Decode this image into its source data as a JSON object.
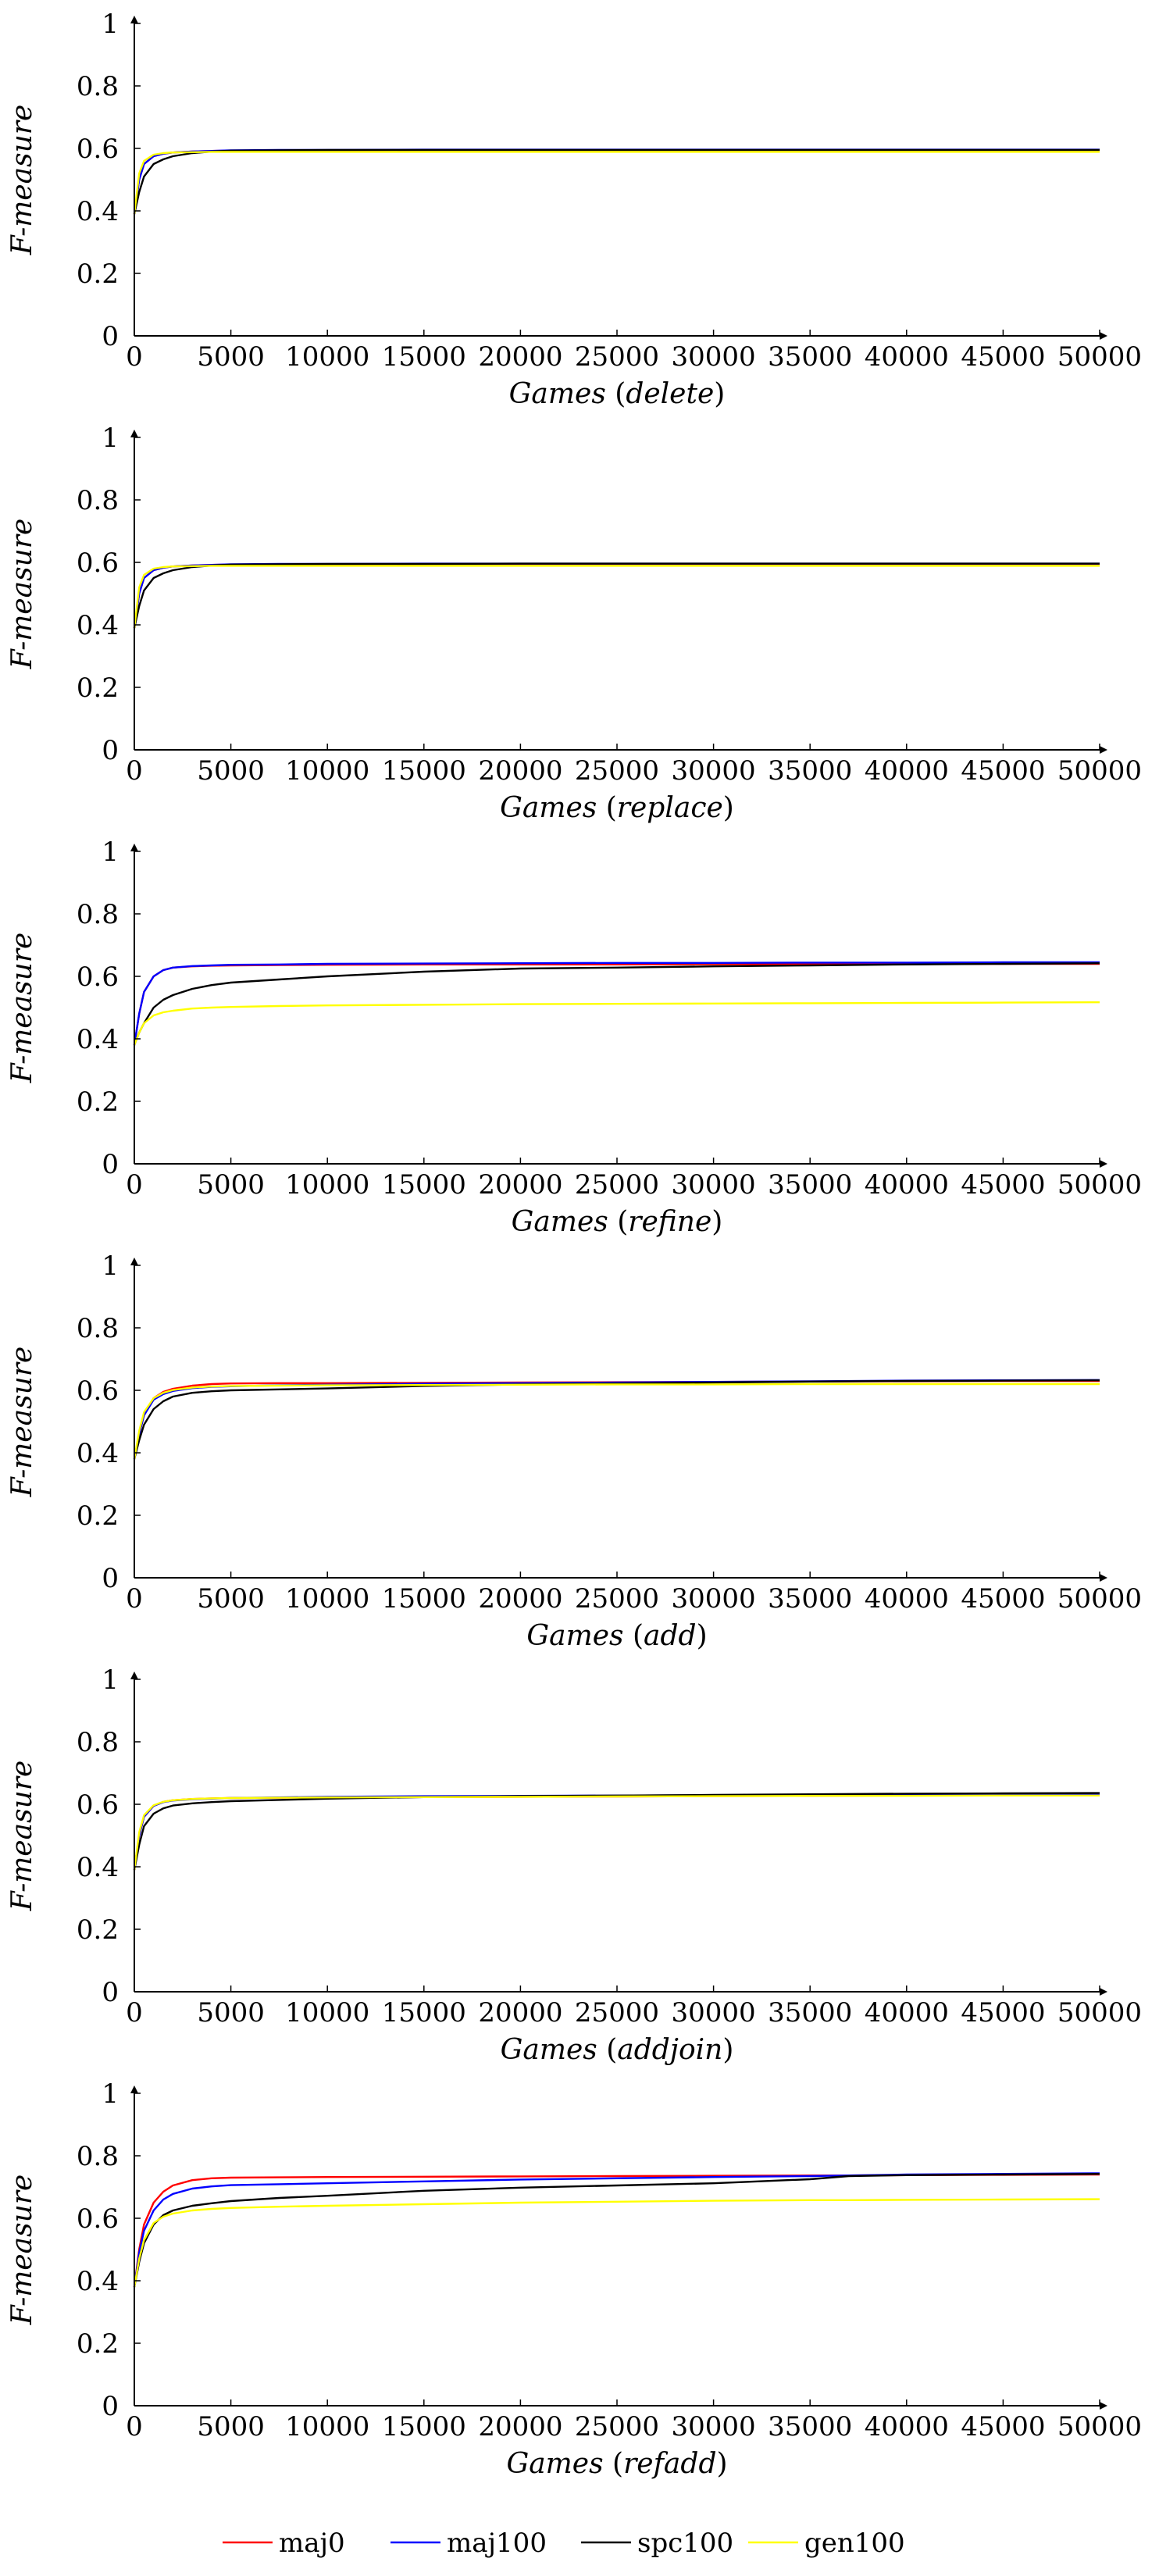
{
  "chart_data": [
    {
      "type": "line",
      "xlabel": "Games",
      "condition": "delete",
      "ylabel": "F-measure",
      "xlim": [
        0,
        50000
      ],
      "ylim": [
        0,
        1
      ],
      "xticks": [
        0,
        5000,
        10000,
        15000,
        20000,
        25000,
        30000,
        35000,
        40000,
        45000,
        50000
      ],
      "yticks": [
        0,
        0.2,
        0.4,
        0.6,
        0.8,
        1
      ],
      "grid": false,
      "x": [
        0,
        250,
        500,
        1000,
        1500,
        2000,
        3000,
        4000,
        5000,
        7500,
        10000,
        15000,
        20000,
        25000,
        30000,
        35000,
        40000,
        45000,
        50000
      ],
      "series": [
        {
          "name": "maj0",
          "color": "#ff0000",
          "values": [
            0.39,
            0.5,
            0.55,
            0.575,
            0.583,
            0.587,
            0.59,
            0.592,
            0.593,
            0.594,
            0.594,
            0.595,
            0.595,
            0.595,
            0.595,
            0.595,
            0.595,
            0.595,
            0.595
          ]
        },
        {
          "name": "maj100",
          "color": "#0000ff",
          "values": [
            0.39,
            0.5,
            0.55,
            0.575,
            0.583,
            0.587,
            0.59,
            0.592,
            0.594,
            0.595,
            0.595,
            0.596,
            0.596,
            0.596,
            0.596,
            0.596,
            0.596,
            0.596,
            0.596
          ]
        },
        {
          "name": "spc100",
          "color": "#000000",
          "values": [
            0.39,
            0.46,
            0.51,
            0.55,
            0.565,
            0.575,
            0.585,
            0.59,
            0.593,
            0.594,
            0.595,
            0.595,
            0.595,
            0.595,
            0.595,
            0.595,
            0.595,
            0.595,
            0.595
          ]
        },
        {
          "name": "gen100",
          "color": "#ffff00",
          "values": [
            0.39,
            0.52,
            0.56,
            0.58,
            0.585,
            0.587,
            0.588,
            0.589,
            0.589,
            0.589,
            0.589,
            0.589,
            0.589,
            0.589,
            0.589,
            0.589,
            0.589,
            0.589,
            0.589
          ]
        }
      ]
    },
    {
      "type": "line",
      "xlabel": "Games",
      "condition": "replace",
      "ylabel": "F-measure",
      "xlim": [
        0,
        50000
      ],
      "ylim": [
        0,
        1
      ],
      "xticks": [
        0,
        5000,
        10000,
        15000,
        20000,
        25000,
        30000,
        35000,
        40000,
        45000,
        50000
      ],
      "yticks": [
        0,
        0.2,
        0.4,
        0.6,
        0.8,
        1
      ],
      "grid": false,
      "x": [
        0,
        250,
        500,
        1000,
        1500,
        2000,
        3000,
        4000,
        5000,
        7500,
        10000,
        15000,
        20000,
        25000,
        30000,
        35000,
        40000,
        45000,
        50000
      ],
      "series": [
        {
          "name": "maj0",
          "color": "#ff0000",
          "values": [
            0.39,
            0.5,
            0.55,
            0.575,
            0.583,
            0.587,
            0.59,
            0.592,
            0.593,
            0.594,
            0.594,
            0.595,
            0.595,
            0.595,
            0.595,
            0.595,
            0.595,
            0.595,
            0.595
          ]
        },
        {
          "name": "maj100",
          "color": "#0000ff",
          "values": [
            0.39,
            0.5,
            0.55,
            0.575,
            0.583,
            0.587,
            0.59,
            0.592,
            0.594,
            0.595,
            0.595,
            0.596,
            0.596,
            0.596,
            0.596,
            0.596,
            0.596,
            0.596,
            0.596
          ]
        },
        {
          "name": "spc100",
          "color": "#000000",
          "values": [
            0.39,
            0.46,
            0.51,
            0.55,
            0.565,
            0.575,
            0.585,
            0.59,
            0.593,
            0.594,
            0.595,
            0.595,
            0.596,
            0.596,
            0.596,
            0.596,
            0.596,
            0.596,
            0.596
          ]
        },
        {
          "name": "gen100",
          "color": "#ffff00",
          "values": [
            0.39,
            0.52,
            0.56,
            0.58,
            0.585,
            0.587,
            0.588,
            0.589,
            0.589,
            0.589,
            0.589,
            0.589,
            0.589,
            0.589,
            0.589,
            0.589,
            0.589,
            0.589,
            0.589
          ]
        }
      ]
    },
    {
      "type": "line",
      "xlabel": "Games",
      "condition": "refine",
      "ylabel": "F-measure",
      "xlim": [
        0,
        50000
      ],
      "ylim": [
        0,
        1
      ],
      "xticks": [
        0,
        5000,
        10000,
        15000,
        20000,
        25000,
        30000,
        35000,
        40000,
        45000,
        50000
      ],
      "yticks": [
        0,
        0.2,
        0.4,
        0.6,
        0.8,
        1
      ],
      "grid": false,
      "x": [
        0,
        250,
        500,
        1000,
        1500,
        2000,
        3000,
        4000,
        5000,
        7500,
        10000,
        15000,
        20000,
        25000,
        30000,
        35000,
        40000,
        45000,
        50000
      ],
      "series": [
        {
          "name": "maj0",
          "color": "#ff0000",
          "values": [
            0.38,
            0.48,
            0.55,
            0.6,
            0.62,
            0.628,
            0.632,
            0.634,
            0.635,
            0.636,
            0.637,
            0.638,
            0.638,
            0.638,
            0.639,
            0.639,
            0.639,
            0.64,
            0.64
          ]
        },
        {
          "name": "maj100",
          "color": "#0000ff",
          "values": [
            0.38,
            0.48,
            0.55,
            0.6,
            0.62,
            0.628,
            0.633,
            0.635,
            0.637,
            0.638,
            0.64,
            0.641,
            0.642,
            0.643,
            0.643,
            0.644,
            0.644,
            0.645,
            0.645
          ]
        },
        {
          "name": "spc100",
          "color": "#000000",
          "values": [
            0.38,
            0.42,
            0.45,
            0.5,
            0.525,
            0.54,
            0.56,
            0.572,
            0.58,
            0.59,
            0.6,
            0.615,
            0.625,
            0.628,
            0.632,
            0.635,
            0.638,
            0.64,
            0.642
          ]
        },
        {
          "name": "gen100",
          "color": "#ffff00",
          "values": [
            0.38,
            0.42,
            0.45,
            0.475,
            0.485,
            0.49,
            0.497,
            0.5,
            0.502,
            0.505,
            0.507,
            0.509,
            0.511,
            0.512,
            0.513,
            0.514,
            0.515,
            0.516,
            0.517
          ]
        }
      ]
    },
    {
      "type": "line",
      "xlabel": "Games",
      "condition": "add",
      "ylabel": "F-measure",
      "xlim": [
        0,
        50000
      ],
      "ylim": [
        0,
        1
      ],
      "xticks": [
        0,
        5000,
        10000,
        15000,
        20000,
        25000,
        30000,
        35000,
        40000,
        45000,
        50000
      ],
      "yticks": [
        0,
        0.2,
        0.4,
        0.6,
        0.8,
        1
      ],
      "grid": false,
      "x": [
        0,
        250,
        500,
        1000,
        1500,
        2000,
        3000,
        4000,
        5000,
        7500,
        10000,
        15000,
        20000,
        25000,
        30000,
        35000,
        40000,
        45000,
        50000
      ],
      "series": [
        {
          "name": "maj0",
          "color": "#ff0000",
          "values": [
            0.38,
            0.46,
            0.52,
            0.575,
            0.595,
            0.605,
            0.615,
            0.62,
            0.622,
            0.623,
            0.623,
            0.624,
            0.625,
            0.626,
            0.627,
            0.628,
            0.629,
            0.63,
            0.63
          ]
        },
        {
          "name": "maj100",
          "color": "#0000ff",
          "values": [
            0.38,
            0.46,
            0.52,
            0.57,
            0.588,
            0.598,
            0.607,
            0.611,
            0.613,
            0.616,
            0.618,
            0.621,
            0.623,
            0.625,
            0.627,
            0.629,
            0.631,
            0.632,
            0.633
          ]
        },
        {
          "name": "spc100",
          "color": "#000000",
          "values": [
            0.38,
            0.44,
            0.49,
            0.54,
            0.565,
            0.58,
            0.592,
            0.597,
            0.6,
            0.603,
            0.606,
            0.614,
            0.619,
            0.622,
            0.625,
            0.628,
            0.63,
            0.631,
            0.632
          ]
        },
        {
          "name": "gen100",
          "color": "#ffff00",
          "values": [
            0.38,
            0.47,
            0.53,
            0.575,
            0.592,
            0.601,
            0.609,
            0.612,
            0.614,
            0.615,
            0.616,
            0.617,
            0.618,
            0.619,
            0.619,
            0.62,
            0.62,
            0.62,
            0.62
          ]
        }
      ]
    },
    {
      "type": "line",
      "xlabel": "Games",
      "condition": "addjoin",
      "ylabel": "F-measure",
      "xlim": [
        0,
        50000
      ],
      "ylim": [
        0,
        1
      ],
      "xticks": [
        0,
        5000,
        10000,
        15000,
        20000,
        25000,
        30000,
        35000,
        40000,
        45000,
        50000
      ],
      "yticks": [
        0,
        0.2,
        0.4,
        0.6,
        0.8,
        1
      ],
      "grid": false,
      "x": [
        0,
        250,
        500,
        1000,
        1500,
        2000,
        3000,
        4000,
        5000,
        7500,
        10000,
        15000,
        20000,
        25000,
        30000,
        35000,
        40000,
        45000,
        50000
      ],
      "series": [
        {
          "name": "maj0",
          "color": "#ff0000",
          "values": [
            0.39,
            0.5,
            0.56,
            0.595,
            0.608,
            0.613,
            0.617,
            0.619,
            0.62,
            0.621,
            0.622,
            0.623,
            0.624,
            0.625,
            0.626,
            0.627,
            0.628,
            0.629,
            0.63
          ]
        },
        {
          "name": "maj100",
          "color": "#0000ff",
          "values": [
            0.39,
            0.5,
            0.56,
            0.595,
            0.607,
            0.612,
            0.616,
            0.618,
            0.62,
            0.622,
            0.624,
            0.626,
            0.627,
            0.628,
            0.629,
            0.63,
            0.631,
            0.632,
            0.633
          ]
        },
        {
          "name": "spc100",
          "color": "#000000",
          "values": [
            0.39,
            0.47,
            0.53,
            0.57,
            0.587,
            0.596,
            0.603,
            0.607,
            0.61,
            0.614,
            0.618,
            0.623,
            0.626,
            0.628,
            0.63,
            0.632,
            0.634,
            0.635,
            0.636
          ]
        },
        {
          "name": "gen100",
          "color": "#ffff00",
          "values": [
            0.39,
            0.51,
            0.565,
            0.597,
            0.608,
            0.613,
            0.617,
            0.619,
            0.62,
            0.621,
            0.622,
            0.623,
            0.624,
            0.625,
            0.626,
            0.627,
            0.627,
            0.628,
            0.628
          ]
        }
      ]
    },
    {
      "type": "line",
      "xlabel": "Games",
      "condition": "refadd",
      "ylabel": "F-measure",
      "xlim": [
        0,
        50000
      ],
      "ylim": [
        0,
        1
      ],
      "xticks": [
        0,
        5000,
        10000,
        15000,
        20000,
        25000,
        30000,
        35000,
        40000,
        45000,
        50000
      ],
      "yticks": [
        0,
        0.2,
        0.4,
        0.6,
        0.8,
        1
      ],
      "grid": false,
      "x": [
        0,
        250,
        500,
        1000,
        1500,
        2000,
        3000,
        4000,
        5000,
        7500,
        10000,
        15000,
        20000,
        25000,
        30000,
        35000,
        37000,
        40000,
        45000,
        50000
      ],
      "series": [
        {
          "name": "maj0",
          "color": "#ff0000",
          "values": [
            0.38,
            0.5,
            0.58,
            0.65,
            0.685,
            0.705,
            0.722,
            0.728,
            0.73,
            0.731,
            0.732,
            0.733,
            0.734,
            0.735,
            0.736,
            0.737,
            0.737,
            0.738,
            0.739,
            0.74
          ]
        },
        {
          "name": "maj100",
          "color": "#0000ff",
          "values": [
            0.38,
            0.49,
            0.56,
            0.625,
            0.66,
            0.678,
            0.695,
            0.702,
            0.706,
            0.709,
            0.712,
            0.718,
            0.724,
            0.728,
            0.732,
            0.735,
            0.737,
            0.74,
            0.742,
            0.744
          ]
        },
        {
          "name": "spc100",
          "color": "#000000",
          "values": [
            0.38,
            0.46,
            0.52,
            0.58,
            0.61,
            0.625,
            0.64,
            0.648,
            0.655,
            0.665,
            0.672,
            0.688,
            0.698,
            0.705,
            0.712,
            0.725,
            0.735,
            0.738,
            0.74,
            0.742
          ]
        },
        {
          "name": "gen100",
          "color": "#ffff00",
          "values": [
            0.38,
            0.47,
            0.53,
            0.585,
            0.605,
            0.615,
            0.625,
            0.63,
            0.633,
            0.637,
            0.64,
            0.645,
            0.65,
            0.653,
            0.656,
            0.658,
            0.658,
            0.659,
            0.66,
            0.661
          ]
        }
      ]
    }
  ],
  "legend": {
    "placement": "bottom",
    "entries": [
      {
        "name": "maj0",
        "color": "#ff0000"
      },
      {
        "name": "maj100",
        "color": "#0000ff"
      },
      {
        "name": "spc100",
        "color": "#000000"
      },
      {
        "name": "gen100",
        "color": "#ffff00"
      }
    ]
  }
}
